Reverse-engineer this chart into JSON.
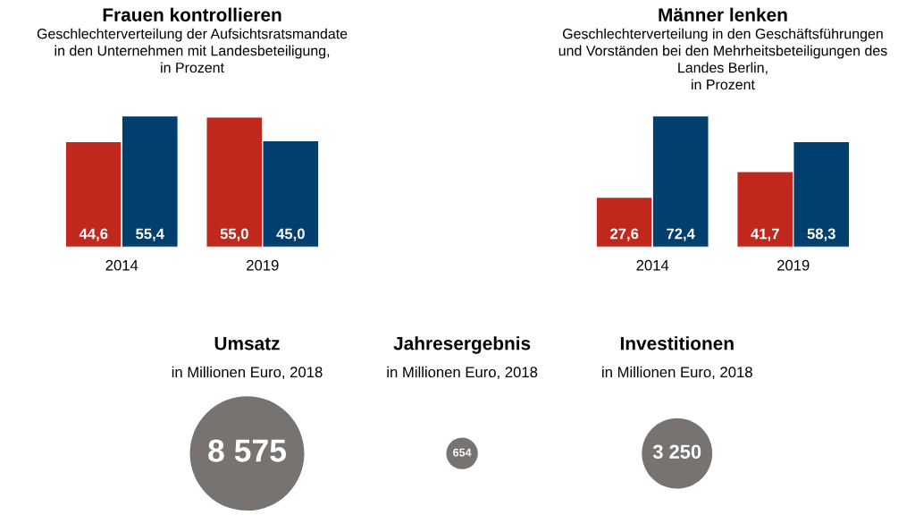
{
  "chart_data": [
    {
      "type": "bar",
      "title": "Frauen kontrollieren",
      "subtitle": "Geschlechterverteilung der Aufsichtsratsmandate\nin den Unternehmen mit Landesbeteiligung,\nin Prozent",
      "categories": [
        "2014",
        "2019"
      ],
      "data_labels": true,
      "series": [
        {
          "color": "#c0281e",
          "values": [
            44.6,
            55.0
          ],
          "value_labels": [
            "44,6",
            "55,0"
          ]
        },
        {
          "color": "#003f6e",
          "values": [
            55.4,
            45.0
          ],
          "value_labels": [
            "55,4",
            "45,0"
          ]
        }
      ]
    },
    {
      "type": "bar",
      "title": "Männer lenken",
      "subtitle": "Geschlechterverteilung in den Geschäftsführungen\nund Vorständen bei den Mehrheitsbeteiligungen des\nLandes Berlin,\nin Prozent",
      "categories": [
        "2014",
        "2019"
      ],
      "data_labels": true,
      "series": [
        {
          "color": "#c0281e",
          "values": [
            27.6,
            41.7
          ],
          "value_labels": [
            "27,6",
            "41,7"
          ]
        },
        {
          "color": "#003f6e",
          "values": [
            72.4,
            58.3
          ],
          "value_labels": [
            "72,4",
            "58,3"
          ]
        }
      ]
    },
    {
      "type": "other",
      "categories": [
        "Umsatz",
        "Jahresergebnis",
        "Investitionen"
      ],
      "values": [
        8575,
        654,
        3250
      ],
      "value_labels": [
        "8 575",
        "654",
        "3 250"
      ],
      "colors": [
        "#777371",
        "#777371",
        "#777371"
      ],
      "annotations": [
        "in Millionen Euro, 2018",
        "in Millionen Euro, 2018",
        "in Millionen Euro, 2018"
      ]
    }
  ]
}
